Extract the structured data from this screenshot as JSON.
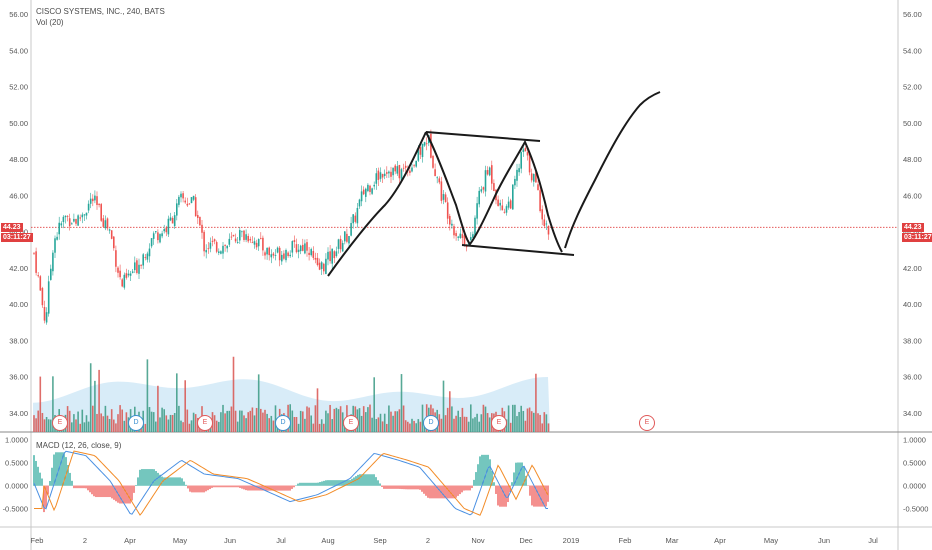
{
  "header": {
    "title": "CISCO SYSTEMS, INC., 240, BATS",
    "vol_label": "Vol (20)",
    "macd_label": "MACD (12, 26, close, 9)"
  },
  "price_badge": {
    "value": "44.23",
    "countdown": "03:11:27"
  },
  "chart_data": [
    {
      "type": "candlestick",
      "title": "CISCO SYSTEMS, INC., 240, BATS",
      "ylim": [
        33,
        57
      ],
      "yticks": [
        "56.00",
        "54.00",
        "52.00",
        "50.00",
        "48.00",
        "46.00",
        "44.00",
        "42.00",
        "40.00",
        "38.00",
        "36.00",
        "34.00"
      ],
      "xticks": [
        "Feb",
        "2",
        "Apr",
        "May",
        "Jun",
        "Jul",
        "Aug",
        "Sep",
        "2",
        "Nov",
        "Dec",
        "2019",
        "Feb",
        "Mar",
        "Apr",
        "May",
        "Jun",
        "Jul"
      ],
      "last_price": 44.23,
      "approx_close_path": [
        [
          "2018-02-01",
          42.8
        ],
        [
          "2018-02-08",
          39.0
        ],
        [
          "2018-02-13",
          43.5
        ],
        [
          "2018-02-20",
          44.8
        ],
        [
          "2018-02-28",
          44.6
        ],
        [
          "2018-03-09",
          45.8
        ],
        [
          "2018-03-20",
          44.0
        ],
        [
          "2018-03-27",
          41.0
        ],
        [
          "2018-04-05",
          42.0
        ],
        [
          "2018-04-16",
          43.8
        ],
        [
          "2018-04-24",
          44.2
        ],
        [
          "2018-05-03",
          45.8
        ],
        [
          "2018-05-11",
          45.5
        ],
        [
          "2018-05-17",
          43.2
        ],
        [
          "2018-05-31",
          43.2
        ],
        [
          "2018-06-07",
          43.8
        ],
        [
          "2018-06-14",
          43.8
        ],
        [
          "2018-06-27",
          42.7
        ],
        [
          "2018-07-09",
          43.0
        ],
        [
          "2018-07-20",
          43.3
        ],
        [
          "2018-07-26",
          41.8
        ],
        [
          "2018-08-02",
          42.5
        ],
        [
          "2018-08-15",
          44.0
        ],
        [
          "2018-08-24",
          46.3
        ],
        [
          "2018-09-06",
          47.5
        ],
        [
          "2018-09-14",
          47.2
        ],
        [
          "2018-09-24",
          47.8
        ],
        [
          "2018-10-02",
          49.2
        ],
        [
          "2018-10-10",
          46.2
        ],
        [
          "2018-10-19",
          44.0
        ],
        [
          "2018-10-29",
          43.3
        ],
        [
          "2018-11-02",
          45.8
        ],
        [
          "2018-11-09",
          47.5
        ],
        [
          "2018-11-16",
          45.2
        ],
        [
          "2018-11-22",
          45.6
        ],
        [
          "2018-11-30",
          48.5
        ],
        [
          "2018-12-07",
          46.8
        ],
        [
          "2018-12-14",
          44.2
        ]
      ],
      "volume_series": {
        "name": "Vol (20)"
      },
      "drawings": [
        "rising trendline",
        "falling wedge channel",
        "projected rebound path"
      ]
    },
    {
      "type": "line",
      "title": "MACD (12, 26, close, 9)",
      "ylim": [
        -0.75,
        1.1
      ],
      "yticks": [
        "1.0000",
        "0.5000",
        "0.0000",
        "-0.5000"
      ],
      "series": [
        {
          "name": "MACD",
          "color": "#4a90e2"
        },
        {
          "name": "Signal",
          "color": "#f28c28"
        }
      ],
      "macd_points": [
        [
          "2018-02-01",
          0.05
        ],
        [
          "2018-02-08",
          -0.55
        ],
        [
          "2018-02-20",
          0.75
        ],
        [
          "2018-03-05",
          0.65
        ],
        [
          "2018-03-20",
          0.1
        ],
        [
          "2018-04-02",
          -0.65
        ],
        [
          "2018-04-16",
          0.1
        ],
        [
          "2018-05-03",
          0.55
        ],
        [
          "2018-05-17",
          0.25
        ],
        [
          "2018-06-07",
          0.15
        ],
        [
          "2018-06-20",
          -0.05
        ],
        [
          "2018-07-09",
          -0.35
        ],
        [
          "2018-07-26",
          -0.2
        ],
        [
          "2018-08-15",
          0.15
        ],
        [
          "2018-08-30",
          0.7
        ],
        [
          "2018-09-14",
          0.55
        ],
        [
          "2018-09-27",
          0.4
        ],
        [
          "2018-10-19",
          -0.5
        ],
        [
          "2018-10-29",
          -0.65
        ],
        [
          "2018-11-09",
          0.45
        ],
        [
          "2018-11-20",
          -0.3
        ],
        [
          "2018-11-30",
          0.45
        ],
        [
          "2018-12-14",
          -0.5
        ]
      ]
    }
  ],
  "event_markers": [
    "E",
    "D",
    "E",
    "D",
    "E",
    "D",
    "E",
    "E"
  ],
  "colors": {
    "up": "#26a69a",
    "down": "#ef5350",
    "drawing": "#1a1a1a",
    "price_line": "#e04040",
    "volume_area": "#a8d4f0"
  }
}
